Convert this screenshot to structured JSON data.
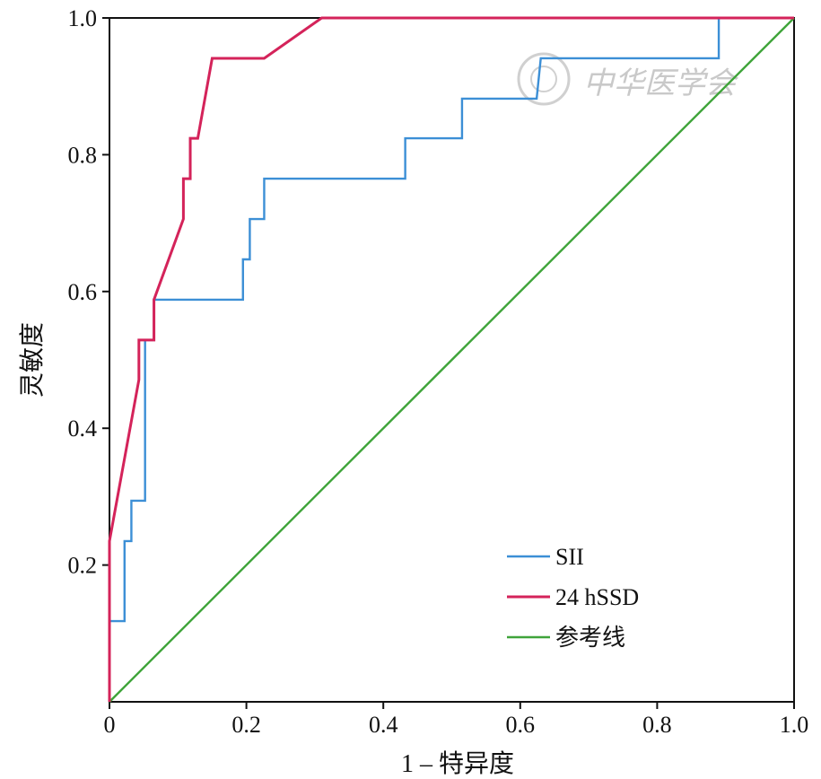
{
  "chart_data": {
    "type": "line",
    "title": "",
    "xlabel": "1 – 特异度",
    "ylabel": "灵敏度",
    "xlim": [
      0,
      1
    ],
    "ylim": [
      0,
      1
    ],
    "x_ticks": [
      "0",
      "0.2",
      "0.4",
      "0.6",
      "0.8",
      "1.0"
    ],
    "y_ticks": [
      "0.2",
      "0.4",
      "0.6",
      "0.8",
      "1.0"
    ],
    "grid": false,
    "legend_position": "bottom-right",
    "series": [
      {
        "name": "SII",
        "color": "#3c8fd6",
        "points": [
          [
            0,
            0
          ],
          [
            0,
            0.118
          ],
          [
            0.022,
            0.118
          ],
          [
            0.022,
            0.235
          ],
          [
            0.032,
            0.235
          ],
          [
            0.032,
            0.294
          ],
          [
            0.052,
            0.294
          ],
          [
            0.052,
            0.529
          ],
          [
            0.065,
            0.529
          ],
          [
            0.065,
            0.588
          ],
          [
            0.195,
            0.588
          ],
          [
            0.195,
            0.647
          ],
          [
            0.205,
            0.647
          ],
          [
            0.205,
            0.706
          ],
          [
            0.226,
            0.706
          ],
          [
            0.226,
            0.765
          ],
          [
            0.432,
            0.765
          ],
          [
            0.432,
            0.824
          ],
          [
            0.515,
            0.824
          ],
          [
            0.515,
            0.882
          ],
          [
            0.624,
            0.882
          ],
          [
            0.63,
            0.941
          ],
          [
            0.89,
            0.941
          ],
          [
            0.89,
            1.0
          ],
          [
            1.0,
            1.0
          ]
        ]
      },
      {
        "name": "24 hSSD",
        "color": "#d4235a",
        "points": [
          [
            0,
            0
          ],
          [
            0,
            0.235
          ],
          [
            0.043,
            0.471
          ],
          [
            0.043,
            0.529
          ],
          [
            0.065,
            0.529
          ],
          [
            0.065,
            0.588
          ],
          [
            0.108,
            0.706
          ],
          [
            0.108,
            0.765
          ],
          [
            0.118,
            0.765
          ],
          [
            0.118,
            0.824
          ],
          [
            0.129,
            0.824
          ],
          [
            0.15,
            0.941
          ],
          [
            0.226,
            0.941
          ],
          [
            0.31,
            1.0
          ],
          [
            1.0,
            1.0
          ]
        ]
      },
      {
        "name": "参考线",
        "color": "#3fa43a",
        "points": [
          [
            0,
            0
          ],
          [
            1,
            1
          ]
        ]
      }
    ],
    "watermark": "中华医学会"
  }
}
